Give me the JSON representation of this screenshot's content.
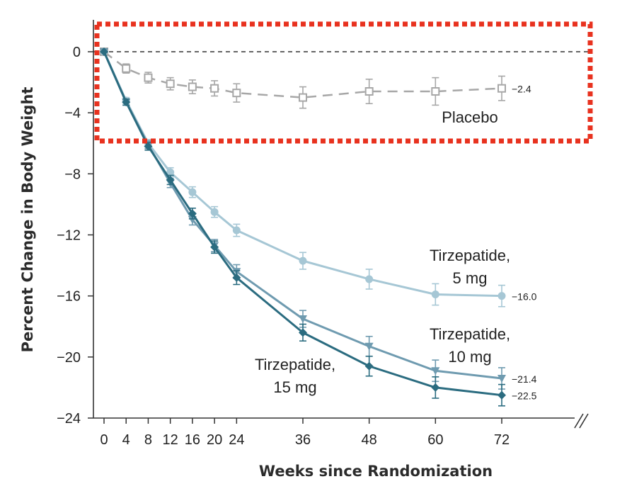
{
  "chart_data": {
    "type": "line",
    "xlabel": "Weeks since Randomization",
    "ylabel": "Percent Change in Body Weight",
    "xlim": [
      0,
      72
    ],
    "ylim": [
      -24,
      0
    ],
    "xticks": [
      0,
      4,
      8,
      12,
      16,
      20,
      24,
      36,
      48,
      60,
      72
    ],
    "yticks": [
      0,
      -4,
      -8,
      -12,
      -16,
      -20,
      -24
    ],
    "x": [
      0,
      4,
      8,
      12,
      16,
      20,
      24,
      36,
      48,
      60,
      72
    ],
    "grid": false,
    "series": [
      {
        "key": "placebo",
        "name": "Placebo",
        "color": "#a7a7a7",
        "marker": "square-open",
        "line": "dashed",
        "values": [
          0,
          -1.1,
          -1.7,
          -2.1,
          -2.3,
          -2.4,
          -2.7,
          -3.0,
          -2.6,
          -2.6,
          -2.4
        ],
        "err": [
          0.2,
          0.3,
          0.35,
          0.4,
          0.45,
          0.5,
          0.6,
          0.7,
          0.8,
          0.9,
          0.8
        ],
        "end_label": "−2.4"
      },
      {
        "key": "t5",
        "name": "Tirzepatide, 5 mg",
        "name_lines": [
          "Tirzepatide,",
          "5 mg"
        ],
        "color": "#a6c7d5",
        "marker": "circle",
        "line": "solid",
        "values": [
          0,
          -3.2,
          -6.0,
          -7.9,
          -9.2,
          -10.5,
          -11.7,
          -13.7,
          -14.9,
          -15.9,
          -16.0
        ],
        "err": [
          0.1,
          0.2,
          0.25,
          0.3,
          0.35,
          0.35,
          0.4,
          0.55,
          0.65,
          0.7,
          0.7
        ],
        "end_label": "−16.0"
      },
      {
        "key": "t10",
        "name": "Tirzepatide, 10 mg",
        "name_lines": [
          "Tirzepatide,",
          "10 mg"
        ],
        "color": "#6f9bb0",
        "marker": "triangle-down",
        "line": "solid",
        "values": [
          0,
          -3.3,
          -6.1,
          -8.6,
          -11.0,
          -12.7,
          -14.4,
          -17.5,
          -19.3,
          -20.9,
          -21.4
        ],
        "err": [
          0.1,
          0.2,
          0.25,
          0.3,
          0.35,
          0.4,
          0.45,
          0.55,
          0.65,
          0.7,
          0.7
        ],
        "end_label": "−21.4"
      },
      {
        "key": "t15",
        "name": "Tirzepatide, 15 mg",
        "name_lines": [
          "Tirzepatide,",
          "15 mg"
        ],
        "color": "#2b6c80",
        "marker": "diamond",
        "line": "solid",
        "values": [
          0,
          -3.3,
          -6.2,
          -8.4,
          -10.6,
          -12.8,
          -14.8,
          -18.4,
          -20.6,
          -22.0,
          -22.5
        ],
        "err": [
          0.1,
          0.2,
          0.25,
          0.3,
          0.35,
          0.4,
          0.45,
          0.55,
          0.65,
          0.7,
          0.7
        ],
        "end_label": "−22.5"
      }
    ],
    "reference_line": {
      "y": 0,
      "style": "dashed",
      "color": "#333333"
    },
    "axis_break": true,
    "highlight_box": {
      "color": "#e8321f",
      "style": "dotted",
      "target": "placebo"
    }
  }
}
